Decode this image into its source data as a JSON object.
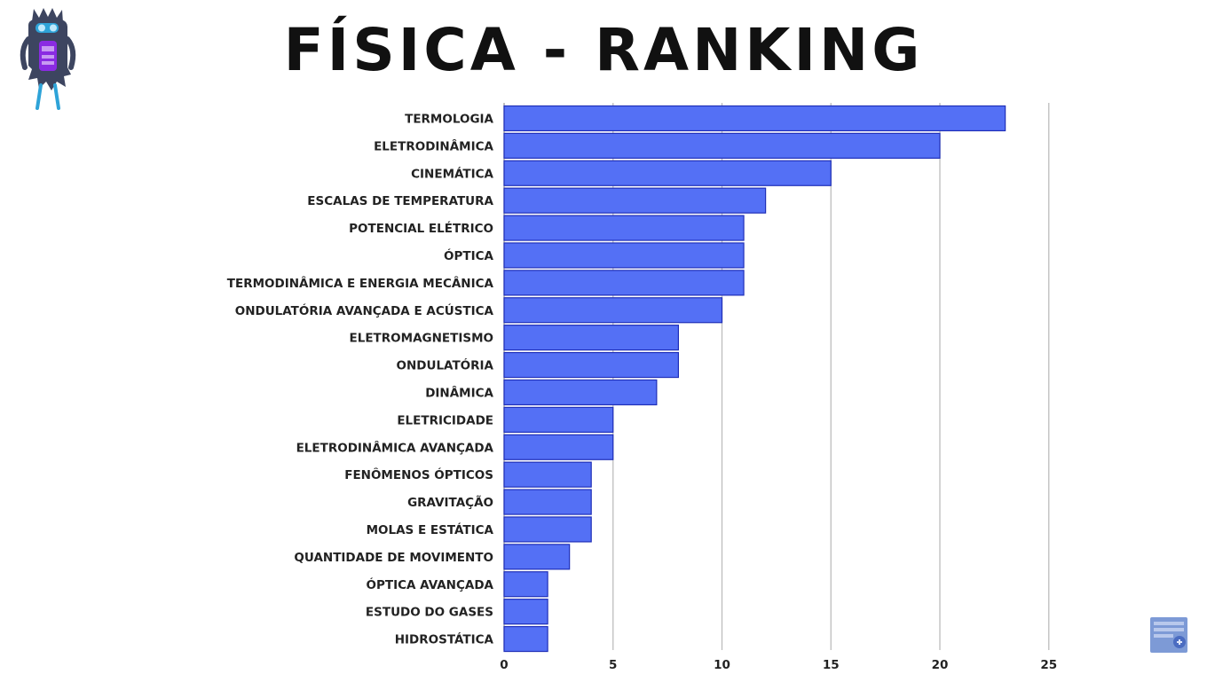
{
  "header": {
    "title": "FÍSICA - RANKING"
  },
  "icons": {
    "mascot": "monster-mascot-icon",
    "corner_logo": "channel-logo-icon"
  },
  "colors": {
    "bar_fill": "#5470f5",
    "bar_stroke": "#1f2fb8",
    "grid": "#bdbdbd"
  },
  "chart_data": {
    "type": "bar",
    "orientation": "horizontal",
    "title": "FÍSICA - RANKING",
    "xlabel": "",
    "ylabel": "",
    "xlim": [
      0,
      25
    ],
    "xticks": [
      0,
      5,
      10,
      15,
      20,
      25
    ],
    "grid": true,
    "categories": [
      "TERMOLOGIA",
      "ELETRODINÂMICA",
      "CINEMÁTICA",
      "ESCALAS DE TEMPERATURA",
      "POTENCIAL ELÉTRICO",
      "ÓPTICA",
      "TERMODINÂMICA E ENERGIA MECÂNICA",
      "ONDULATÓRIA AVANÇADA E ACÚSTICA",
      "ELETROMAGNETISMO",
      "ONDULATÓRIA",
      "DINÂMICA",
      "ELETRICIDADE",
      "ELETRODINÂMICA AVANÇADA",
      "FENÔMENOS ÓPTICOS",
      "GRAVITAÇÃO",
      "MOLAS E ESTÁTICA",
      "QUANTIDADE DE MOVIMENTO",
      "ÓPTICA AVANÇADA",
      "ESTUDO DO GASES",
      "HIDROSTÁTICA"
    ],
    "values": [
      23,
      20,
      15,
      12,
      11,
      11,
      11,
      10,
      8,
      8,
      7,
      5,
      5,
      4,
      4,
      4,
      3,
      2,
      2,
      2
    ]
  }
}
